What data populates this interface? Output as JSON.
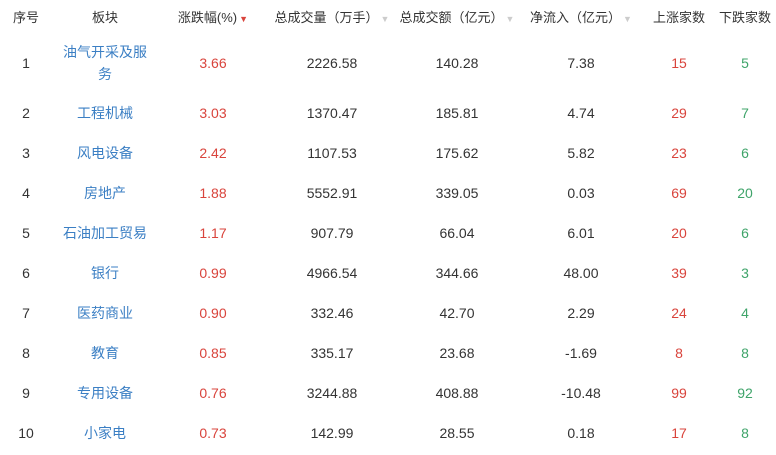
{
  "headers": {
    "rank": "序号",
    "sector": "板块",
    "change": "涨跌幅(%)",
    "volume": "总成交量（万手）",
    "amount": "总成交额（亿元）",
    "inflow": "净流入（亿元）",
    "up": "上涨家数",
    "down": "下跌家数"
  },
  "sort_icons": {
    "active": "▼",
    "idle": "▼"
  },
  "colors": {
    "link": "#3b7fc4",
    "up": "#d9443c",
    "down": "#3fa46a"
  },
  "rows": [
    {
      "rank": "1",
      "sector": "油气开采及服务",
      "change": "3.66",
      "volume": "2226.58",
      "amount": "140.28",
      "inflow": "7.38",
      "up": "15",
      "down": "5"
    },
    {
      "rank": "2",
      "sector": "工程机械",
      "change": "3.03",
      "volume": "1370.47",
      "amount": "185.81",
      "inflow": "4.74",
      "up": "29",
      "down": "7"
    },
    {
      "rank": "3",
      "sector": "风电设备",
      "change": "2.42",
      "volume": "1107.53",
      "amount": "175.62",
      "inflow": "5.82",
      "up": "23",
      "down": "6"
    },
    {
      "rank": "4",
      "sector": "房地产",
      "change": "1.88",
      "volume": "5552.91",
      "amount": "339.05",
      "inflow": "0.03",
      "up": "69",
      "down": "20"
    },
    {
      "rank": "5",
      "sector": "石油加工贸易",
      "change": "1.17",
      "volume": "907.79",
      "amount": "66.04",
      "inflow": "6.01",
      "up": "20",
      "down": "6"
    },
    {
      "rank": "6",
      "sector": "银行",
      "change": "0.99",
      "volume": "4966.54",
      "amount": "344.66",
      "inflow": "48.00",
      "up": "39",
      "down": "3"
    },
    {
      "rank": "7",
      "sector": "医药商业",
      "change": "0.90",
      "volume": "332.46",
      "amount": "42.70",
      "inflow": "2.29",
      "up": "24",
      "down": "4"
    },
    {
      "rank": "8",
      "sector": "教育",
      "change": "0.85",
      "volume": "335.17",
      "amount": "23.68",
      "inflow": "-1.69",
      "up": "8",
      "down": "8"
    },
    {
      "rank": "9",
      "sector": "专用设备",
      "change": "0.76",
      "volume": "3244.88",
      "amount": "408.88",
      "inflow": "-10.48",
      "up": "99",
      "down": "92"
    },
    {
      "rank": "10",
      "sector": "小家电",
      "change": "0.73",
      "volume": "142.99",
      "amount": "28.55",
      "inflow": "0.18",
      "up": "17",
      "down": "8"
    }
  ]
}
